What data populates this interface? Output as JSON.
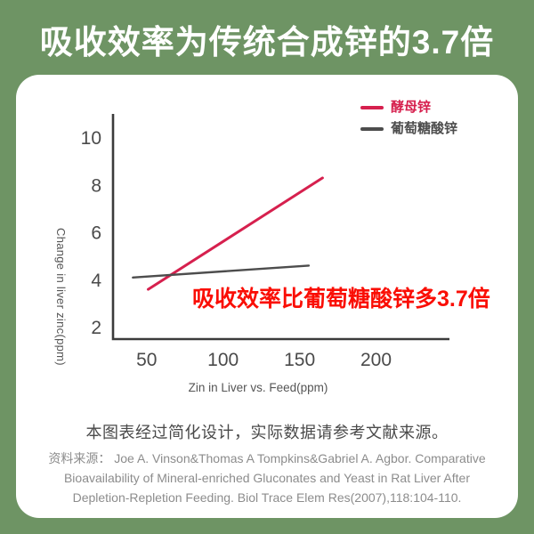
{
  "header": {
    "title": "吸收效率为传统合成锌的3.7倍"
  },
  "chart_data": {
    "type": "line",
    "title": "",
    "xlabel": "Zin in Liver vs. Feed(ppm)",
    "ylabel": "Change in liver zinc(ppm)",
    "xlim": [
      28,
      248
    ],
    "ylim": [
      1.5,
      11
    ],
    "xticks": [
      50,
      100,
      150,
      200
    ],
    "yticks": [
      2,
      4,
      6,
      8,
      10
    ],
    "grid": false,
    "legend_position": "top-right",
    "series": [
      {
        "name": "酵母锌",
        "color": "#d6204e",
        "points": [
          [
            51,
            3.6
          ],
          [
            165,
            8.3
          ]
        ]
      },
      {
        "name": "葡萄糖酸锌",
        "color": "#4d4d4d",
        "points": [
          [
            41,
            4.1
          ],
          [
            156,
            4.6
          ]
        ]
      }
    ],
    "annotation": {
      "text": "吸收效率比葡萄糖酸锌多3.7倍",
      "color": "#fa0e05"
    }
  },
  "footer": {
    "note": "本图表经过简化设计，实际数据请参考文献来源。",
    "source_lines": [
      "资料来源： Joe A. Vinson&Thomas A Tompkins&Gabriel A. Agbor. Comparative",
      "Bioavailability of Mineral-enriched Gluconates and Yeast in Rat Liver After",
      "Depletion-Repletion Feeding. Biol Trace Elem Res(2007),118:104-110."
    ]
  },
  "colors": {
    "background": "#6e9464",
    "card": "#ffffff",
    "axis": "#3b3b3b",
    "tick_text": "#4a4a4a"
  }
}
